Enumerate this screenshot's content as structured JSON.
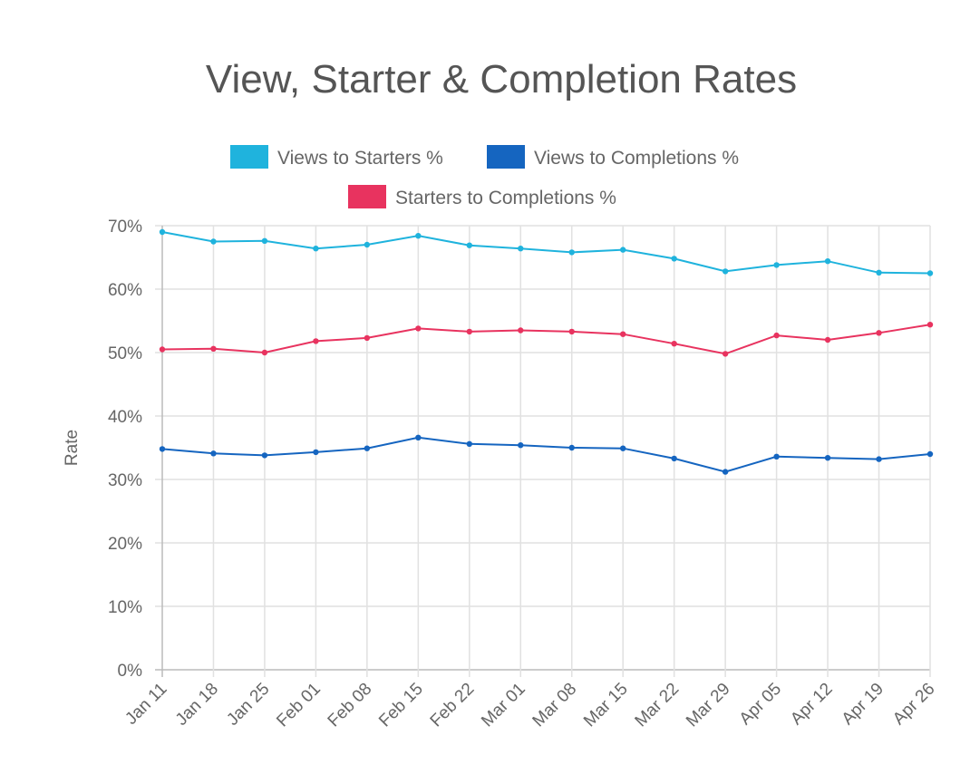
{
  "chart_data": {
    "type": "line",
    "title": "View, Starter & Completion Rates",
    "xlabel": "",
    "ylabel": "Rate",
    "ylim": [
      0,
      70
    ],
    "y_ticks": [
      "0%",
      "10%",
      "20%",
      "30%",
      "40%",
      "50%",
      "60%",
      "70%"
    ],
    "y_tick_values": [
      0,
      10,
      20,
      30,
      40,
      50,
      60,
      70
    ],
    "grid": true,
    "legend_position": "top",
    "categories": [
      "Jan 11",
      "Jan 18",
      "Jan 25",
      "Feb 01",
      "Feb 08",
      "Feb 15",
      "Feb 22",
      "Mar 01",
      "Mar 08",
      "Mar 15",
      "Mar 22",
      "Mar 29",
      "Apr 05",
      "Apr 12",
      "Apr 19",
      "Apr 26"
    ],
    "series": [
      {
        "name": "Views to Starters %",
        "color": "#1fb3dd",
        "values": [
          69.0,
          67.5,
          67.6,
          66.4,
          67.0,
          68.4,
          66.9,
          66.4,
          65.8,
          66.2,
          64.8,
          62.8,
          63.8,
          64.4,
          62.6,
          62.5
        ]
      },
      {
        "name": "Views to Completions %",
        "color": "#1565c0",
        "values": [
          34.8,
          34.1,
          33.8,
          34.3,
          34.9,
          36.6,
          35.6,
          35.4,
          35.0,
          34.9,
          33.3,
          31.2,
          33.6,
          33.4,
          33.2,
          34.0
        ]
      },
      {
        "name": "Starters to Completions %",
        "color": "#e8335f",
        "values": [
          50.5,
          50.6,
          50.0,
          51.8,
          52.3,
          53.8,
          53.3,
          53.5,
          53.3,
          52.9,
          51.4,
          49.8,
          52.7,
          52.0,
          53.1,
          54.4
        ]
      }
    ]
  }
}
